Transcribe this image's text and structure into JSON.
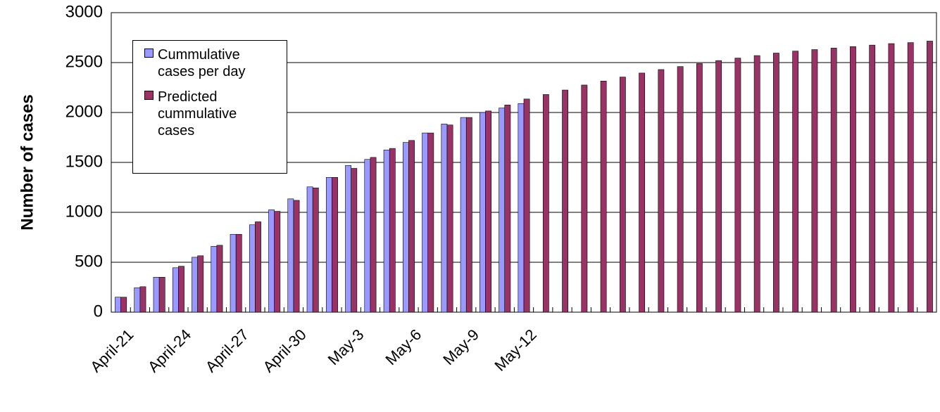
{
  "chart_data": {
    "type": "bar",
    "y_label": "Number of cases",
    "categories": [
      "April-21",
      null,
      null,
      "April-24",
      null,
      null,
      "April-27",
      null,
      null,
      "April-30",
      null,
      null,
      "May-3",
      null,
      null,
      "May-6",
      null,
      null,
      "May-9",
      null,
      null,
      "May-12",
      null,
      null,
      null,
      null,
      null,
      null,
      null,
      null,
      null,
      null,
      null,
      null,
      null,
      null,
      null,
      null,
      null,
      null,
      null,
      null,
      null
    ],
    "series": [
      {
        "name": "Cummulative cases per day",
        "color": "#9999ff",
        "values": [
          150,
          245,
          350,
          445,
          550,
          660,
          780,
          875,
          1025,
          1135,
          1255,
          1350,
          1470,
          1530,
          1625,
          1700,
          1795,
          1885,
          1950,
          2000,
          2045,
          2090,
          null,
          null,
          null,
          null,
          null,
          null,
          null,
          null,
          null,
          null,
          null,
          null,
          null,
          null,
          null,
          null,
          null,
          null,
          null,
          null,
          null
        ]
      },
      {
        "name": "Predicted cummulative cases",
        "color": "#993366",
        "values": [
          150,
          255,
          350,
          460,
          565,
          670,
          780,
          905,
          1010,
          1120,
          1245,
          1350,
          1440,
          1550,
          1640,
          1720,
          1795,
          1875,
          1950,
          2015,
          2075,
          2135,
          2180,
          2225,
          2275,
          2315,
          2355,
          2395,
          2430,
          2460,
          2490,
          2520,
          2545,
          2570,
          2595,
          2615,
          2630,
          2645,
          2660,
          2675,
          2690,
          2700,
          2715
        ]
      }
    ],
    "ylim": [
      0,
      3000
    ],
    "yticks": [
      0,
      500,
      1000,
      1500,
      2000,
      2500,
      3000
    ],
    "grid": true
  }
}
